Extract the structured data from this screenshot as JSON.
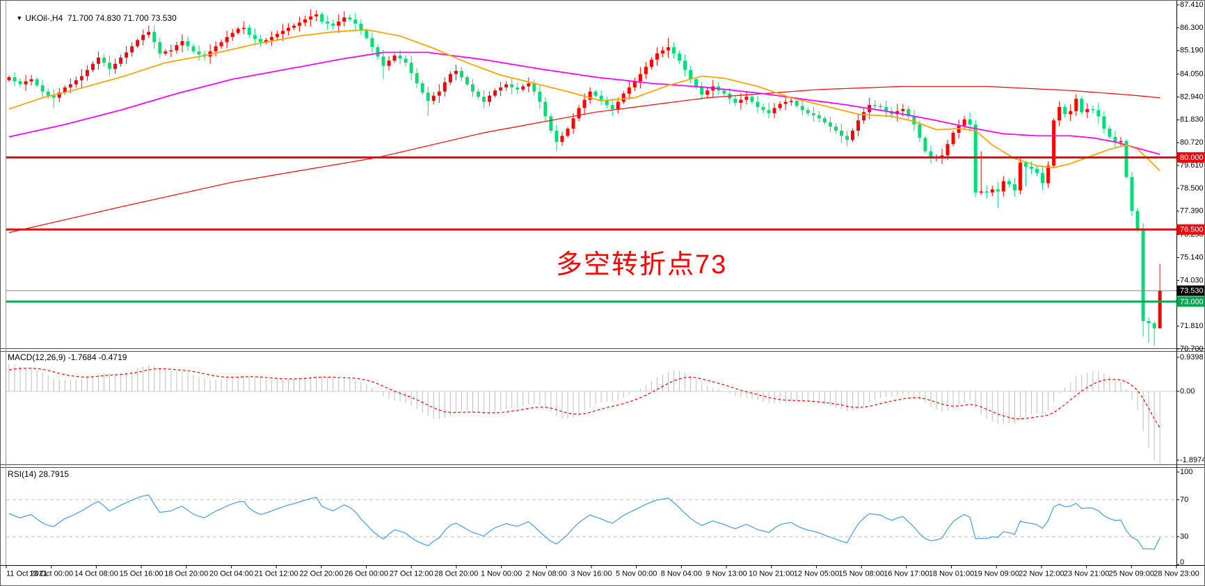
{
  "header": {
    "dropdown_icon": "▼",
    "symbol": "UKOil-,H4",
    "ohlc_line": "71.700 74.830 71.700 73.530"
  },
  "annotation": {
    "text": "多空转折点73",
    "color": "#FF0000"
  },
  "indicators": {
    "macd_label": "MACD(12,26,9) -1.7684 -0.4719",
    "rsi_label": "RSI(14) 28.7915"
  },
  "colors": {
    "background": "#FFFFFF",
    "up_candle": "#FF0000",
    "down_candle": "#00DC78",
    "ma_fast": "#FFA500",
    "ma_mid": "#FF00FF",
    "ma_slow": "#FF0000",
    "macd_hist": "#BDBDBD",
    "macd_signal": "#FF0000",
    "macd_zero": "#CCCCCC",
    "rsi_line": "#559FE0",
    "rsi_grid": "#BFBFBF",
    "axis_text": "#000000",
    "separator": "#4a4a4a",
    "current_price_line": "#808080"
  },
  "axes": {
    "price_labels": [
      "87.410",
      "86.300",
      "85.190",
      "84.050",
      "82.940",
      "81.830",
      "80.720",
      "79.610",
      "78.500",
      "77.390",
      "76.250",
      "75.140",
      "74.030",
      "71.810",
      "70.700"
    ],
    "macd_labels": [
      {
        "v": 0.9398,
        "text": "0.9398"
      },
      {
        "v": 0.0,
        "text": "0.00"
      },
      {
        "v": -1.8974,
        "text": "-1.8974"
      }
    ],
    "rsi_labels": [
      {
        "v": 100,
        "text": "100"
      },
      {
        "v": 70,
        "text": "70"
      },
      {
        "v": 30,
        "text": "30"
      },
      {
        "v": 0,
        "text": "0"
      }
    ],
    "time_labels": [
      "11 Oct 2021",
      "13 Oct 00:00",
      "14 Oct 08:00",
      "15 Oct 16:00",
      "18 Oct 20:00",
      "20 Oct 04:00",
      "21 Oct 12:00",
      "22 Oct 20:00",
      "26 Oct 00:00",
      "27 Oct 12:00",
      "28 Oct 20:00",
      "1 Nov 00:00",
      "2 Nov 08:00",
      "3 Nov 16:00",
      "5 Nov 00:00",
      "8 Nov 04:00",
      "9 Nov 13:00",
      "10 Nov 21:00",
      "12 Nov 05:00",
      "15 Nov 08:00",
      "16 Nov 17:00",
      "18 Nov 01:00",
      "19 Nov 09:00",
      "22 Nov 12:00",
      "23 Nov 21:00",
      "25 Nov 09:00",
      "28 Nov 23:00"
    ]
  },
  "levels": [
    {
      "price": 80.0,
      "label": "80.000",
      "line_color": "#FF0000",
      "line_width": 3,
      "badge_bg": "#FF0000",
      "badge_fg": "#FFFFFF"
    },
    {
      "price": 76.5,
      "label": "76.500",
      "line_color": "#FF0000",
      "line_width": 3,
      "badge_bg": "#FF0000",
      "badge_fg": "#FFFFFF"
    },
    {
      "price": 73.53,
      "label": "73.530",
      "line_color": "#808080",
      "line_width": 1,
      "badge_bg": "#000000",
      "badge_fg": "#FFFFFF"
    },
    {
      "price": 73.0,
      "label": "73.000",
      "line_color": "#00A651",
      "line_width": 3,
      "badge_bg": "#00A651",
      "badge_fg": "#FFFFFF"
    }
  ],
  "chart_data": {
    "type": "candlestick",
    "symbol": "UKOil-",
    "timeframe": "H4",
    "title": "UKOil-,H4 71.700 74.830 71.700 73.530",
    "visible_price_range": {
      "min": 70.7,
      "max": 87.41
    },
    "last_candle": {
      "open": 71.7,
      "high": 74.83,
      "low": 71.7,
      "close": 73.53
    },
    "open_first": 83.75,
    "closes": [
      83.9,
      83.7,
      83.55,
      83.7,
      83.8,
      83.5,
      83.2,
      83.0,
      82.9,
      83.15,
      83.4,
      83.55,
      83.75,
      83.95,
      84.25,
      84.55,
      84.85,
      84.6,
      84.3,
      84.55,
      84.85,
      85.1,
      85.4,
      85.7,
      85.95,
      86.1,
      85.6,
      85.05,
      85.15,
      85.2,
      85.45,
      85.65,
      85.4,
      85.15,
      85.0,
      84.9,
      85.15,
      85.4,
      85.6,
      85.85,
      86.05,
      86.25,
      86.3,
      85.95,
      85.75,
      85.6,
      85.7,
      85.85,
      86.0,
      86.15,
      86.3,
      86.4,
      86.55,
      86.7,
      86.85,
      86.95,
      86.6,
      86.5,
      86.4,
      86.6,
      86.8,
      86.7,
      86.5,
      86.15,
      85.8,
      85.35,
      84.9,
      84.45,
      84.7,
      84.95,
      84.8,
      84.6,
      84.1,
      83.6,
      83.15,
      82.75,
      83.0,
      83.2,
      83.65,
      84.05,
      84.2,
      83.9,
      83.55,
      83.2,
      82.95,
      82.7,
      83.0,
      83.25,
      83.4,
      83.55,
      83.4,
      83.3,
      83.45,
      83.6,
      83.2,
      82.7,
      82.0,
      81.3,
      80.75,
      81.05,
      81.4,
      81.9,
      82.4,
      82.8,
      83.2,
      83.0,
      82.8,
      82.55,
      82.35,
      82.7,
      83.1,
      83.4,
      83.7,
      84.05,
      84.4,
      84.75,
      85.05,
      85.2,
      85.35,
      85.05,
      84.7,
      84.25,
      83.8,
      83.4,
      83.05,
      83.25,
      83.45,
      83.25,
      83.1,
      82.85,
      82.65,
      82.8,
      82.95,
      82.7,
      82.45,
      82.3,
      82.15,
      82.4,
      82.6,
      82.7,
      82.75,
      82.5,
      82.3,
      82.15,
      82.05,
      81.9,
      81.7,
      81.5,
      81.3,
      81.05,
      80.85,
      81.3,
      81.8,
      82.2,
      82.55,
      82.5,
      82.45,
      82.25,
      82.1,
      82.25,
      82.35,
      82.0,
      81.6,
      80.95,
      80.3,
      79.95,
      80.0,
      80.1,
      80.65,
      81.2,
      81.55,
      81.85,
      81.6,
      78.3,
      78.35,
      78.3,
      78.45,
      78.35,
      78.85,
      78.7,
      78.4,
      79.75,
      79.55,
      79.45,
      79.25,
      78.75,
      79.6,
      81.8,
      82.45,
      82.1,
      82.25,
      82.85,
      82.2,
      82.35,
      82.3,
      82.0,
      81.4,
      81.0,
      80.75,
      80.8,
      79.05,
      77.4,
      76.5,
      72.05,
      71.95,
      71.7,
      73.53
    ],
    "wick_overrides": {
      "8": {
        "l": 82.4
      },
      "25": {
        "h": 86.4
      },
      "42": {
        "h": 86.6
      },
      "55": {
        "h": 87.15
      },
      "60": {
        "h": 87.1
      },
      "67": {
        "l": 83.8
      },
      "75": {
        "l": 82.0
      },
      "98": {
        "l": 80.3
      },
      "118": {
        "h": 85.8
      },
      "136": {
        "l": 81.9
      },
      "150": {
        "l": 80.55
      },
      "165": {
        "l": 79.7
      },
      "174": {
        "h": 80.3
      },
      "177": {
        "l": 77.55
      },
      "182": {
        "l": 78.6
      },
      "203": {
        "l": 71.3
      },
      "204": {
        "l": 71.0
      },
      "205": {
        "l": 70.86
      },
      "206": {
        "h": 74.83,
        "l": 71.7
      }
    },
    "ma_fast_keyframes": [
      [
        0,
        82.35
      ],
      [
        6,
        82.9
      ],
      [
        12,
        83.3
      ],
      [
        20,
        83.9
      ],
      [
        28,
        84.6
      ],
      [
        36,
        85.0
      ],
      [
        44,
        85.5
      ],
      [
        52,
        85.9
      ],
      [
        58,
        86.1
      ],
      [
        64,
        86.2
      ],
      [
        70,
        85.9
      ],
      [
        76,
        85.3
      ],
      [
        82,
        84.6
      ],
      [
        88,
        84.0
      ],
      [
        94,
        83.6
      ],
      [
        100,
        83.2
      ],
      [
        106,
        82.75
      ],
      [
        112,
        82.9
      ],
      [
        118,
        83.5
      ],
      [
        124,
        83.95
      ],
      [
        128,
        83.85
      ],
      [
        134,
        83.45
      ],
      [
        140,
        82.9
      ],
      [
        146,
        82.5
      ],
      [
        152,
        82.1
      ],
      [
        158,
        82.0
      ],
      [
        162,
        81.75
      ],
      [
        166,
        81.35
      ],
      [
        170,
        81.4
      ],
      [
        173,
        81.3
      ],
      [
        176,
        80.6
      ],
      [
        180,
        79.95
      ],
      [
        184,
        79.6
      ],
      [
        187,
        79.5
      ],
      [
        190,
        79.7
      ],
      [
        194,
        80.1
      ],
      [
        197,
        80.4
      ],
      [
        200,
        80.6
      ],
      [
        202,
        80.4
      ],
      [
        204,
        79.9
      ],
      [
        206,
        79.35
      ]
    ],
    "ma_mid_keyframes": [
      [
        0,
        81.0
      ],
      [
        10,
        81.6
      ],
      [
        20,
        82.3
      ],
      [
        30,
        83.1
      ],
      [
        40,
        83.8
      ],
      [
        52,
        84.4
      ],
      [
        60,
        84.8
      ],
      [
        67,
        85.1
      ],
      [
        75,
        85.1
      ],
      [
        85,
        84.75
      ],
      [
        95,
        84.3
      ],
      [
        105,
        83.9
      ],
      [
        115,
        83.6
      ],
      [
        125,
        83.4
      ],
      [
        135,
        83.1
      ],
      [
        143,
        82.8
      ],
      [
        150,
        82.55
      ],
      [
        158,
        82.2
      ],
      [
        165,
        81.85
      ],
      [
        172,
        81.45
      ],
      [
        178,
        81.15
      ],
      [
        184,
        81.05
      ],
      [
        190,
        81.05
      ],
      [
        194,
        80.95
      ],
      [
        198,
        80.75
      ],
      [
        202,
        80.45
      ],
      [
        206,
        80.15
      ]
    ],
    "ma_slow_keyframes": [
      [
        0,
        76.35
      ],
      [
        20,
        77.6
      ],
      [
        40,
        78.8
      ],
      [
        66,
        80.0
      ],
      [
        85,
        81.2
      ],
      [
        105,
        82.2
      ],
      [
        125,
        82.9
      ],
      [
        145,
        83.3
      ],
      [
        160,
        83.45
      ],
      [
        175,
        83.45
      ],
      [
        190,
        83.25
      ],
      [
        200,
        83.05
      ],
      [
        206,
        82.9
      ]
    ],
    "macd": {
      "fast": 12,
      "slow": 26,
      "signal": 9,
      "seed_fast": 83.2,
      "seed_slow": 82.45,
      "seed_signal": 0.55,
      "scale_max": 0.9398,
      "scale_min": -1.8974,
      "last_macd": -1.7684,
      "last_signal": -0.4719
    },
    "rsi": {
      "period": 14,
      "last": 28.7915,
      "overbought": 70,
      "oversold": 30,
      "seed_gain": 0.15,
      "seed_loss": 0.12
    }
  }
}
